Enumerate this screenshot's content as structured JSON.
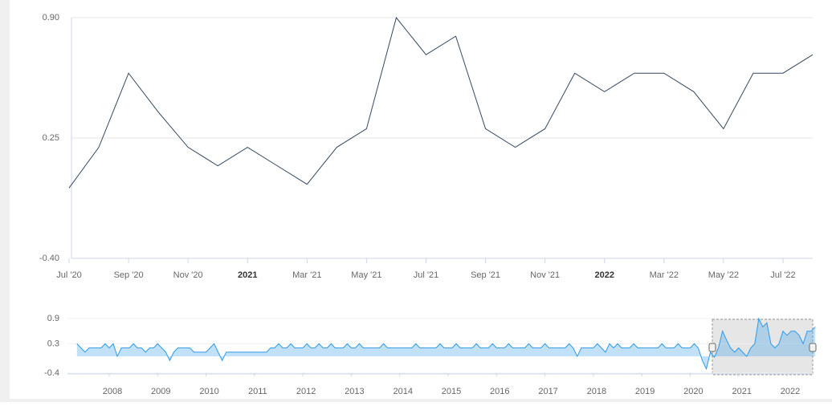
{
  "chart_data": {
    "type": "line",
    "x": [
      "2020-07",
      "2020-08",
      "2020-09",
      "2020-10",
      "2020-11",
      "2020-12",
      "2021-01",
      "2021-02",
      "2021-03",
      "2021-04",
      "2021-05",
      "2021-06",
      "2021-07",
      "2021-08",
      "2021-09",
      "2021-10",
      "2021-11",
      "2021-12",
      "2022-01",
      "2022-02",
      "2022-03",
      "2022-04",
      "2022-05",
      "2022-06",
      "2022-07",
      "2022-08"
    ],
    "series": [
      {
        "color": "#34495e",
        "values": [
          -0.02,
          0.2,
          0.6,
          0.39,
          0.2,
          0.1,
          0.2,
          0.1,
          0.0,
          0.2,
          0.3,
          0.9,
          0.7,
          0.8,
          0.3,
          0.2,
          0.3,
          0.6,
          0.5,
          0.6,
          0.6,
          0.5,
          0.3,
          0.6,
          0.6,
          0.7
        ]
      }
    ],
    "ylim": [
      -0.4,
      0.9
    ],
    "yticks": [
      {
        "value": 0.9,
        "label": "0.90"
      },
      0.25,
      {
        "value": -0.4,
        "label": "-0.40"
      }
    ],
    "xticks": [
      {
        "value": "2020-07",
        "label": "Jul '20"
      },
      {
        "value": "2020-09",
        "label": "Sep '20"
      },
      {
        "value": "2020-11",
        "label": "Nov '20"
      },
      {
        "value": "2021-01",
        "label": "2021"
      },
      {
        "value": "2021-03",
        "label": "Mar '21"
      },
      {
        "value": "2021-05",
        "label": "May '21"
      },
      {
        "value": "2021-07",
        "label": "Jul '21"
      },
      {
        "value": "2021-09",
        "label": "Sep '21"
      },
      {
        "value": "2021-11",
        "label": "Nov '21"
      },
      {
        "value": "2022-01",
        "label": "2022"
      },
      {
        "value": "2022-03",
        "label": "Mar '22"
      },
      {
        "value": "2022-05",
        "label": "May '22"
      },
      {
        "value": "2022-07",
        "label": "Jul '22"
      }
    ],
    "grid": true,
    "navigator": {
      "color": "#2f9be8",
      "start": "2007-05",
      "values": [
        0.3,
        0.2,
        0.1,
        0.2,
        0.2,
        0.2,
        0.2,
        0.3,
        0.2,
        0.3,
        0.0,
        0.2,
        0.2,
        0.2,
        0.3,
        0.2,
        0.2,
        0.1,
        0.2,
        0.2,
        0.3,
        0.2,
        0.1,
        -0.1,
        0.1,
        0.2,
        0.2,
        0.2,
        0.2,
        0.1,
        0.1,
        0.1,
        0.1,
        0.2,
        0.3,
        0.1,
        -0.1,
        0.1,
        0.1,
        0.1,
        0.1,
        0.1,
        0.1,
        0.1,
        0.1,
        0.1,
        0.1,
        0.1,
        0.2,
        0.2,
        0.3,
        0.2,
        0.2,
        0.3,
        0.2,
        0.2,
        0.2,
        0.3,
        0.2,
        0.2,
        0.3,
        0.2,
        0.2,
        0.3,
        0.2,
        0.2,
        0.2,
        0.3,
        0.2,
        0.2,
        0.3,
        0.2,
        0.2,
        0.2,
        0.2,
        0.2,
        0.3,
        0.2,
        0.2,
        0.2,
        0.2,
        0.2,
        0.2,
        0.2,
        0.3,
        0.2,
        0.2,
        0.2,
        0.2,
        0.2,
        0.3,
        0.2,
        0.2,
        0.2,
        0.3,
        0.2,
        0.2,
        0.2,
        0.2,
        0.3,
        0.2,
        0.2,
        0.2,
        0.3,
        0.2,
        0.2,
        0.2,
        0.3,
        0.2,
        0.2,
        0.2,
        0.2,
        0.3,
        0.2,
        0.2,
        0.2,
        0.3,
        0.2,
        0.2,
        0.2,
        0.2,
        0.2,
        0.3,
        0.2,
        0.0,
        0.2,
        0.2,
        0.2,
        0.2,
        0.3,
        0.2,
        0.1,
        0.3,
        0.2,
        0.3,
        0.2,
        0.2,
        0.2,
        0.3,
        0.2,
        0.2,
        0.2,
        0.2,
        0.2,
        0.2,
        0.3,
        0.2,
        0.2,
        0.2,
        0.3,
        0.2,
        0.2,
        0.2,
        0.3,
        0.2,
        -0.1,
        -0.3,
        0.1
      ],
      "ylim": [
        -0.4,
        0.9
      ],
      "yticks": [
        0.9,
        0.3,
        -0.4
      ],
      "xticks": [
        2008,
        2009,
        2010,
        2011,
        2012,
        2013,
        2014,
        2015,
        2016,
        2017,
        2018,
        2019,
        2020,
        2021,
        2022
      ]
    }
  }
}
